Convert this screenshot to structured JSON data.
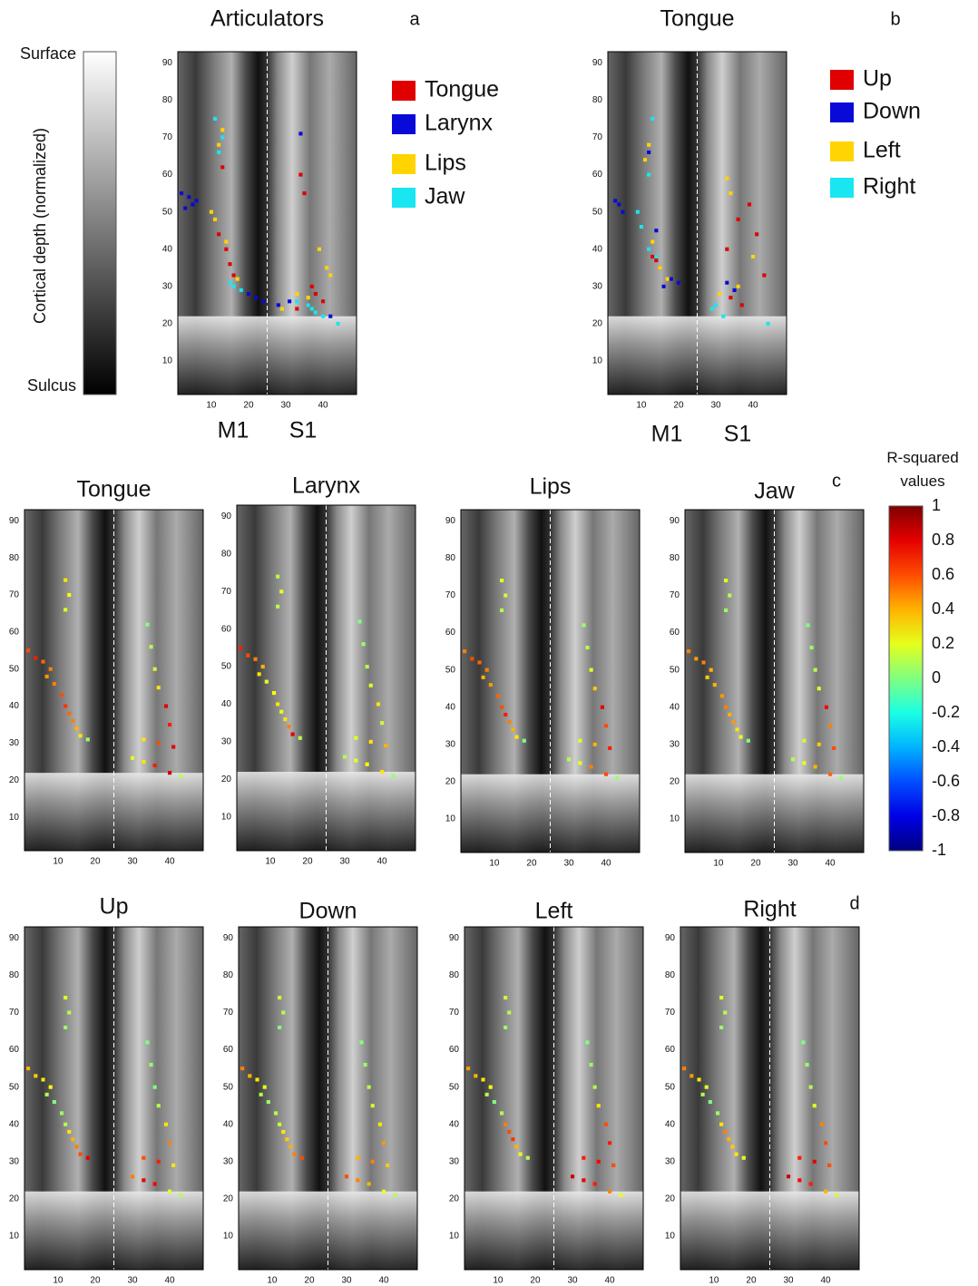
{
  "chart_data": [
    {
      "type": "colorbar",
      "ylabel": "Cortical depth (normalized)",
      "ylim": [
        0,
        1
      ],
      "yticks": [
        {
          "value": 1,
          "label": "Surface"
        },
        {
          "value": 0,
          "label": "Sulcus"
        }
      ],
      "colors": [
        "#000000",
        "#ffffff"
      ]
    },
    {
      "type": "scatter",
      "title": "Articulators",
      "panel_label": "a",
      "region_labels": [
        "M1",
        "S1"
      ],
      "legend": "right",
      "divider_x": 25,
      "xlim": [
        1,
        49
      ],
      "ylim": [
        1,
        93
      ],
      "xticks": [
        10,
        20,
        30,
        40
      ],
      "yticks": [
        10,
        20,
        30,
        40,
        50,
        60,
        70,
        80,
        90
      ],
      "series": [
        {
          "name": "Tongue",
          "color": "#e00000",
          "x": [
            13,
            12,
            14,
            15,
            16,
            34,
            35,
            37,
            38,
            40,
            36,
            33
          ],
          "y": [
            62,
            44,
            40,
            36,
            33,
            60,
            55,
            30,
            28,
            26,
            25,
            24
          ]
        },
        {
          "name": "Larynx",
          "color": "#0a0ad8",
          "x": [
            2,
            4,
            5,
            6,
            3,
            20,
            22,
            24,
            34,
            28,
            31,
            42
          ],
          "y": [
            55,
            54,
            52,
            53,
            51,
            28,
            27,
            26,
            71,
            25,
            26,
            22
          ]
        },
        {
          "name": "Lips",
          "color": "#ffd400",
          "x": [
            13,
            12,
            10,
            11,
            14,
            17,
            39,
            41,
            42,
            36,
            29,
            33
          ],
          "y": [
            72,
            68,
            50,
            48,
            42,
            32,
            40,
            35,
            33,
            27,
            24,
            28
          ]
        },
        {
          "name": "Jaw",
          "color": "#19e6f0",
          "x": [
            11,
            13,
            12,
            16,
            15,
            18,
            36,
            38,
            40,
            37,
            44,
            33
          ],
          "y": [
            75,
            70,
            66,
            30,
            31,
            29,
            25,
            23,
            22,
            24,
            20,
            26
          ]
        }
      ]
    },
    {
      "type": "scatter",
      "title": "Tongue",
      "panel_label": "b",
      "region_labels": [
        "M1",
        "S1"
      ],
      "legend": "right",
      "divider_x": 25,
      "xlim": [
        1,
        49
      ],
      "ylim": [
        1,
        93
      ],
      "xticks": [
        10,
        20,
        30,
        40
      ],
      "yticks": [
        10,
        20,
        30,
        40,
        50,
        60,
        70,
        80,
        90
      ],
      "series": [
        {
          "name": "Up",
          "color": "#e00000",
          "x": [
            13,
            14,
            15,
            33,
            36,
            39,
            41,
            43,
            34,
            37
          ],
          "y": [
            38,
            37,
            35,
            40,
            48,
            52,
            44,
            33,
            27,
            25
          ]
        },
        {
          "name": "Down",
          "color": "#0a0ad8",
          "x": [
            3,
            4,
            5,
            12,
            14,
            16,
            18,
            20,
            33,
            35
          ],
          "y": [
            53,
            52,
            50,
            66,
            45,
            30,
            32,
            31,
            31,
            29
          ]
        },
        {
          "name": "Left",
          "color": "#ffd400",
          "x": [
            12,
            11,
            13,
            15,
            17,
            33,
            34,
            31,
            36,
            40
          ],
          "y": [
            68,
            64,
            42,
            35,
            32,
            59,
            55,
            28,
            30,
            38
          ]
        },
        {
          "name": "Right",
          "color": "#19e6f0",
          "x": [
            13,
            12,
            9,
            10,
            12,
            14,
            30,
            29,
            32,
            44
          ],
          "y": [
            75,
            60,
            50,
            46,
            40,
            38,
            25,
            24,
            22,
            20
          ]
        }
      ]
    },
    {
      "type": "voxel-r2",
      "title": "Tongue",
      "divider_x": 25,
      "xlim": [
        1,
        49
      ],
      "ylim": [
        1,
        93
      ],
      "xticks": [
        10,
        20,
        30,
        40
      ],
      "yticks": [
        10,
        20,
        30,
        40,
        50,
        60,
        70,
        80,
        90
      ],
      "x": [
        12,
        13,
        12,
        2,
        4,
        6,
        8,
        7,
        9,
        11,
        12,
        13,
        14,
        15,
        16,
        18,
        34,
        35,
        36,
        37,
        39,
        40,
        33,
        37,
        41,
        30,
        33,
        36,
        40,
        43
      ],
      "y": [
        74,
        70,
        66,
        55,
        53,
        52,
        50,
        48,
        46,
        43,
        40,
        38,
        36,
        34,
        32,
        31,
        62,
        56,
        50,
        45,
        40,
        35,
        31,
        30,
        29,
        26,
        25,
        24,
        22,
        21
      ],
      "values": [
        0.3,
        0.25,
        0.2,
        0.6,
        0.7,
        0.55,
        0.5,
        0.45,
        0.5,
        0.6,
        0.65,
        0.55,
        0.5,
        0.4,
        0.3,
        0.05,
        0.0,
        0.1,
        0.15,
        0.3,
        0.8,
        0.7,
        0.3,
        0.6,
        0.8,
        0.2,
        0.3,
        0.7,
        0.85,
        0.1
      ]
    },
    {
      "type": "voxel-r2",
      "title": "Larynx",
      "divider_x": 25,
      "xlim": [
        1,
        49
      ],
      "ylim": [
        1,
        93
      ],
      "xticks": [
        10,
        20,
        30,
        40
      ],
      "yticks": [
        10,
        20,
        30,
        40,
        50,
        60,
        70,
        80,
        90
      ],
      "x": [
        12,
        13,
        12,
        2,
        4,
        6,
        8,
        7,
        9,
        11,
        12,
        13,
        14,
        15,
        16,
        18,
        34,
        35,
        36,
        37,
        39,
        40,
        33,
        37,
        41,
        30,
        33,
        36,
        40,
        43
      ],
      "y": [
        74,
        70,
        66,
        55,
        53,
        52,
        50,
        48,
        46,
        43,
        40,
        38,
        36,
        34,
        32,
        31,
        62,
        56,
        50,
        45,
        40,
        35,
        31,
        30,
        29,
        26,
        25,
        24,
        22,
        21
      ],
      "values": [
        0.1,
        0.2,
        0.1,
        0.7,
        0.6,
        0.5,
        0.4,
        0.3,
        0.2,
        0.25,
        0.3,
        0.2,
        0.3,
        0.5,
        0.8,
        0.1,
        0.0,
        0.05,
        0.1,
        0.2,
        0.3,
        0.15,
        0.2,
        0.3,
        0.4,
        0.1,
        0.2,
        0.25,
        0.3,
        0.05
      ]
    },
    {
      "type": "voxel-r2",
      "title": "Lips",
      "divider_x": 25,
      "xlim": [
        1,
        49
      ],
      "ylim": [
        1,
        93
      ],
      "xticks": [
        10,
        20,
        30,
        40
      ],
      "yticks": [
        10,
        20,
        30,
        40,
        50,
        60,
        70,
        80,
        90
      ],
      "x": [
        12,
        13,
        12,
        2,
        4,
        6,
        8,
        7,
        9,
        11,
        12,
        13,
        14,
        15,
        16,
        18,
        34,
        35,
        36,
        37,
        39,
        40,
        33,
        37,
        41,
        30,
        33,
        36,
        40,
        43
      ],
      "y": [
        74,
        70,
        66,
        55,
        53,
        52,
        50,
        48,
        46,
        43,
        40,
        38,
        36,
        34,
        32,
        31,
        62,
        56,
        50,
        45,
        40,
        35,
        31,
        30,
        29,
        26,
        25,
        24,
        22,
        21
      ],
      "values": [
        0.2,
        0.15,
        0.1,
        0.5,
        0.6,
        0.55,
        0.5,
        0.4,
        0.45,
        0.55,
        0.6,
        0.7,
        0.5,
        0.4,
        0.3,
        0.0,
        0.05,
        0.1,
        0.2,
        0.35,
        0.8,
        0.6,
        0.2,
        0.4,
        0.7,
        0.1,
        0.2,
        0.5,
        0.6,
        0.05
      ]
    },
    {
      "type": "voxel-r2",
      "title": "Jaw",
      "panel_label": "c",
      "divider_x": 25,
      "xlim": [
        1,
        49
      ],
      "ylim": [
        1,
        93
      ],
      "xticks": [
        10,
        20,
        30,
        40
      ],
      "yticks": [
        10,
        20,
        30,
        40,
        50,
        60,
        70,
        80,
        90
      ],
      "x": [
        12,
        13,
        12,
        2,
        4,
        6,
        8,
        7,
        9,
        11,
        12,
        13,
        14,
        15,
        16,
        18,
        34,
        35,
        36,
        37,
        39,
        40,
        33,
        37,
        41,
        30,
        33,
        36,
        40,
        43
      ],
      "y": [
        74,
        70,
        66,
        55,
        53,
        52,
        50,
        48,
        46,
        43,
        40,
        38,
        36,
        34,
        32,
        31,
        62,
        56,
        50,
        45,
        40,
        35,
        31,
        30,
        29,
        26,
        25,
        24,
        22,
        21
      ],
      "values": [
        0.2,
        0.1,
        0.05,
        0.5,
        0.45,
        0.5,
        0.4,
        0.35,
        0.4,
        0.45,
        0.5,
        0.4,
        0.45,
        0.3,
        0.2,
        0.0,
        0.0,
        0.05,
        0.1,
        0.2,
        0.75,
        0.5,
        0.15,
        0.35,
        0.6,
        0.1,
        0.2,
        0.4,
        0.55,
        0.05
      ]
    },
    {
      "type": "colorbar",
      "title": "R-squared values",
      "colormap": "jet",
      "ylim": [
        -1,
        1
      ],
      "yticks": [
        1,
        0.8,
        0.6,
        0.4,
        0.2,
        0,
        -0.2,
        -0.4,
        -0.6,
        -0.8,
        -1
      ]
    },
    {
      "type": "voxel-r2",
      "title": "Up",
      "divider_x": 25,
      "xlim": [
        1,
        49
      ],
      "ylim": [
        1,
        93
      ],
      "xticks": [
        10,
        20,
        30,
        40
      ],
      "yticks": [
        10,
        20,
        30,
        40,
        50,
        60,
        70,
        80,
        90
      ],
      "x": [
        12,
        13,
        12,
        2,
        4,
        6,
        8,
        7,
        9,
        11,
        12,
        13,
        14,
        15,
        16,
        18,
        34,
        35,
        36,
        37,
        39,
        40,
        33,
        37,
        41,
        30,
        33,
        36,
        40,
        43
      ],
      "y": [
        74,
        70,
        66,
        55,
        53,
        52,
        50,
        48,
        46,
        43,
        40,
        38,
        36,
        34,
        32,
        31,
        62,
        56,
        50,
        45,
        40,
        35,
        31,
        30,
        29,
        26,
        25,
        24,
        22,
        21
      ],
      "values": [
        0.2,
        0.1,
        0.05,
        0.4,
        0.35,
        0.3,
        0.25,
        0.1,
        0.0,
        0.05,
        0.1,
        0.3,
        0.4,
        0.5,
        0.6,
        0.8,
        0.0,
        0.05,
        0.0,
        0.1,
        0.3,
        0.5,
        0.6,
        0.7,
        0.3,
        0.5,
        0.8,
        0.75,
        0.2,
        0.1
      ]
    },
    {
      "type": "voxel-r2",
      "title": "Down",
      "divider_x": 25,
      "xlim": [
        1,
        49
      ],
      "ylim": [
        1,
        93
      ],
      "xticks": [
        10,
        20,
        30,
        40
      ],
      "yticks": [
        10,
        20,
        30,
        40,
        50,
        60,
        70,
        80,
        90
      ],
      "x": [
        12,
        13,
        12,
        2,
        4,
        6,
        8,
        7,
        9,
        11,
        12,
        13,
        14,
        15,
        16,
        18,
        34,
        35,
        36,
        37,
        39,
        40,
        33,
        37,
        41,
        30,
        33,
        36,
        40,
        43
      ],
      "y": [
        74,
        70,
        66,
        55,
        53,
        52,
        50,
        48,
        46,
        43,
        40,
        38,
        36,
        34,
        32,
        31,
        62,
        56,
        50,
        45,
        40,
        35,
        31,
        30,
        29,
        26,
        25,
        24,
        22,
        21
      ],
      "values": [
        0.15,
        0.1,
        0.0,
        0.5,
        0.4,
        0.3,
        0.2,
        0.1,
        0.05,
        0.1,
        0.15,
        0.3,
        0.35,
        0.4,
        0.5,
        0.6,
        0.0,
        0.05,
        0.1,
        0.15,
        0.3,
        0.45,
        0.4,
        0.5,
        0.35,
        0.6,
        0.5,
        0.4,
        0.2,
        0.1
      ]
    },
    {
      "type": "voxel-r2",
      "title": "Left",
      "divider_x": 25,
      "xlim": [
        1,
        49
      ],
      "ylim": [
        1,
        93
      ],
      "xticks": [
        10,
        20,
        30,
        40
      ],
      "yticks": [
        10,
        20,
        30,
        40,
        50,
        60,
        70,
        80,
        90
      ],
      "x": [
        12,
        13,
        12,
        2,
        4,
        6,
        8,
        7,
        9,
        11,
        12,
        13,
        14,
        15,
        16,
        18,
        34,
        35,
        36,
        37,
        39,
        40,
        33,
        37,
        41,
        30,
        33,
        36,
        40,
        43
      ],
      "y": [
        74,
        70,
        66,
        55,
        53,
        52,
        50,
        48,
        46,
        43,
        40,
        38,
        36,
        34,
        32,
        31,
        62,
        56,
        50,
        45,
        40,
        35,
        31,
        30,
        29,
        26,
        25,
        24,
        22,
        21
      ],
      "values": [
        0.15,
        0.1,
        0.05,
        0.45,
        0.4,
        0.3,
        0.25,
        0.1,
        0.0,
        0.1,
        0.5,
        0.6,
        0.65,
        0.4,
        0.2,
        0.1,
        0.0,
        0.05,
        0.1,
        0.3,
        0.6,
        0.7,
        0.7,
        0.75,
        0.6,
        0.85,
        0.8,
        0.7,
        0.5,
        0.2
      ]
    },
    {
      "type": "voxel-r2",
      "title": "Right",
      "panel_label": "d",
      "divider_x": 25,
      "xlim": [
        1,
        49
      ],
      "ylim": [
        1,
        93
      ],
      "xticks": [
        10,
        20,
        30,
        40
      ],
      "yticks": [
        10,
        20,
        30,
        40,
        50,
        60,
        70,
        80,
        90
      ],
      "x": [
        12,
        13,
        12,
        2,
        4,
        6,
        8,
        7,
        9,
        11,
        12,
        13,
        14,
        15,
        16,
        18,
        34,
        35,
        36,
        37,
        39,
        40,
        33,
        37,
        41,
        30,
        33,
        36,
        40,
        43
      ],
      "y": [
        74,
        70,
        66,
        55,
        53,
        52,
        50,
        48,
        46,
        43,
        40,
        38,
        36,
        34,
        32,
        31,
        62,
        56,
        50,
        45,
        40,
        35,
        31,
        30,
        29,
        26,
        25,
        24,
        22,
        21
      ],
      "values": [
        0.2,
        0.1,
        0.05,
        0.5,
        0.45,
        0.3,
        0.2,
        0.1,
        0.0,
        0.05,
        0.3,
        0.5,
        0.4,
        0.35,
        0.3,
        0.2,
        0.0,
        0.05,
        0.1,
        0.2,
        0.5,
        0.6,
        0.7,
        0.8,
        0.6,
        0.85,
        0.75,
        0.7,
        0.4,
        0.15
      ]
    }
  ]
}
